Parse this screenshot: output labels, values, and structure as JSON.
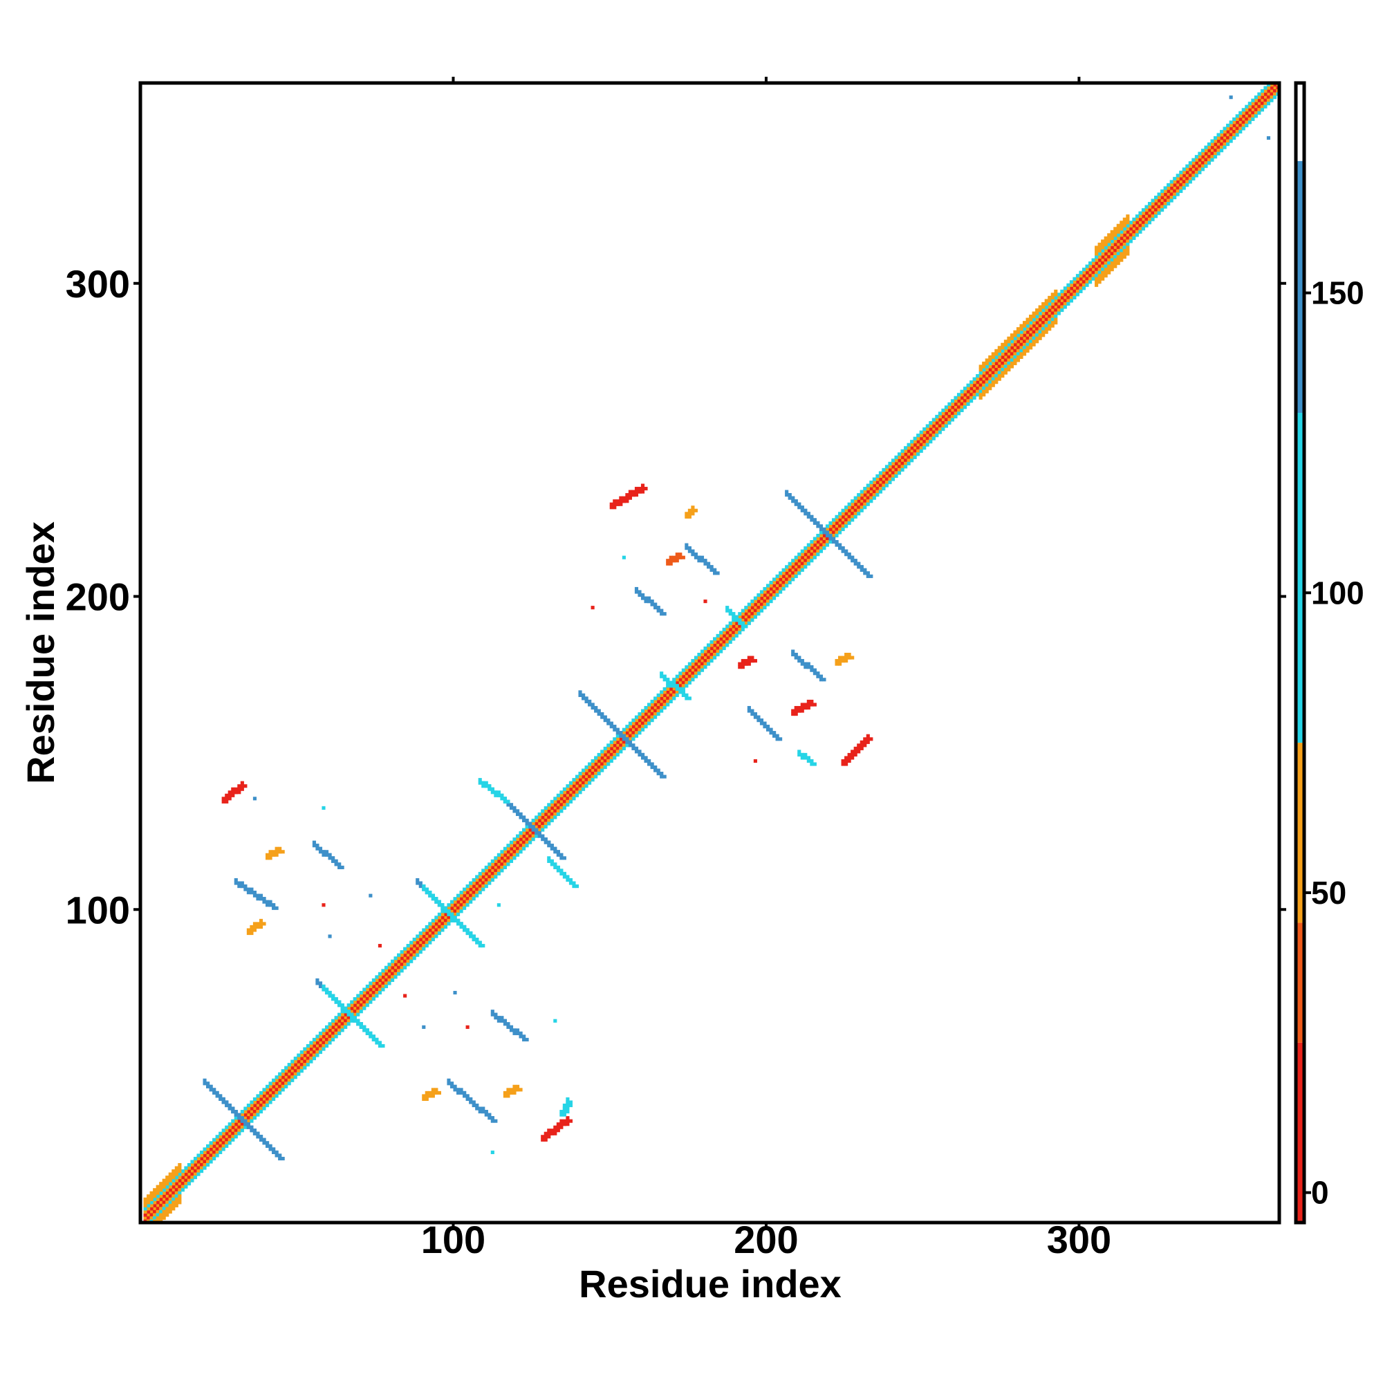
{
  "chart_data": {
    "type": "heatmap",
    "title": "",
    "xlabel": "Residue index",
    "ylabel": "Residue index",
    "xlim": [
      0,
      364
    ],
    "ylim": [
      0,
      364
    ],
    "xticks": [
      {
        "value": 100,
        "label": "100"
      },
      {
        "value": 200,
        "label": "200"
      },
      {
        "value": 300,
        "label": "300"
      }
    ],
    "yticks": [
      {
        "value": 100,
        "label": "100"
      },
      {
        "value": 200,
        "label": "200"
      },
      {
        "value": 300,
        "label": "300"
      }
    ],
    "grid": false,
    "colorbar": {
      "range": [
        -5,
        185
      ],
      "ticks": [
        {
          "value": 0,
          "label": "0"
        },
        {
          "value": 50,
          "label": "50"
        },
        {
          "value": 100,
          "label": "100"
        },
        {
          "value": 150,
          "label": "150"
        }
      ],
      "bands": [
        {
          "from": -5,
          "to": 25,
          "color": "#e8231b"
        },
        {
          "from": 25,
          "to": 45,
          "color": "#ee5a1a"
        },
        {
          "from": 45,
          "to": 75,
          "color": "#f5a01a"
        },
        {
          "from": 75,
          "to": 130,
          "color": "#26d4e6"
        },
        {
          "from": 130,
          "to": 172,
          "color": "#3e90c9"
        },
        {
          "from": 172,
          "to": 185,
          "color": "#ffffff"
        }
      ]
    },
    "colors": {
      "red": "#e8231b",
      "red_orange": "#ee5a1a",
      "orange": "#f5a01a",
      "cyan": "#26d4e6",
      "blue": "#3e90c9"
    },
    "diagonal_bands": [
      {
        "from": 1,
        "to": 364,
        "offset": 0,
        "width": 1,
        "color": "orange"
      },
      {
        "from": 1,
        "to": 364,
        "offset": 1,
        "width": 1,
        "color": "red"
      },
      {
        "from": 1,
        "to": 364,
        "offset": -1,
        "width": 1,
        "color": "red"
      },
      {
        "from": 1,
        "to": 364,
        "offset": 2,
        "width": 1,
        "color": "orange"
      },
      {
        "from": 1,
        "to": 364,
        "offset": -2,
        "width": 1,
        "color": "orange"
      },
      {
        "from": 1,
        "to": 364,
        "offset": 3,
        "width": 1,
        "color": "cyan"
      },
      {
        "from": 1,
        "to": 364,
        "offset": -3,
        "width": 1,
        "color": "cyan"
      },
      {
        "from": 268,
        "to": 292,
        "offset": 4,
        "width": 2,
        "color": "orange"
      },
      {
        "from": 268,
        "to": 292,
        "offset": -4,
        "width": 2,
        "color": "orange"
      },
      {
        "from": 305,
        "to": 315,
        "offset": 4,
        "width": 3,
        "color": "orange"
      },
      {
        "from": 305,
        "to": 315,
        "offset": -4,
        "width": 3,
        "color": "orange"
      },
      {
        "from": 1,
        "to": 12,
        "offset": 4,
        "width": 3,
        "color": "orange"
      },
      {
        "from": 1,
        "to": 12,
        "offset": -4,
        "width": 3,
        "color": "orange"
      }
    ],
    "segments": [
      {
        "x": [
          20,
          38
        ],
        "y": [
          44,
          26
        ],
        "color": "blue"
      },
      {
        "x": [
          26,
          44
        ],
        "y": [
          38,
          20
        ],
        "color": "blue"
      },
      {
        "x": [
          56,
          74
        ],
        "y": [
          76,
          58
        ],
        "color": "blue"
      },
      {
        "x": [
          58,
          76
        ],
        "y": [
          74,
          56
        ],
        "color": "cyan"
      },
      {
        "x": [
          88,
          106
        ],
        "y": [
          108,
          90
        ],
        "color": "blue"
      },
      {
        "x": [
          90,
          108
        ],
        "y": [
          106,
          88
        ],
        "color": "cyan"
      },
      {
        "x": [
          116,
          134
        ],
        "y": [
          134,
          116
        ],
        "color": "blue"
      },
      {
        "x": [
          108,
          116
        ],
        "y": [
          140,
          134
        ],
        "color": "cyan"
      },
      {
        "x": [
          130,
          138
        ],
        "y": [
          115,
          107
        ],
        "color": "cyan"
      },
      {
        "x": [
          140,
          166
        ],
        "y": [
          168,
          142
        ],
        "color": "blue"
      },
      {
        "x": [
          206,
          232
        ],
        "y": [
          232,
          206
        ],
        "color": "blue"
      },
      {
        "x": [
          30,
          42
        ],
        "y": [
          108,
          100
        ],
        "color": "blue"
      },
      {
        "x": [
          55,
          63
        ],
        "y": [
          120,
          113
        ],
        "color": "blue"
      },
      {
        "x": [
          98,
          112
        ],
        "y": [
          44,
          32
        ],
        "color": "blue"
      },
      {
        "x": [
          112,
          122
        ],
        "y": [
          66,
          58
        ],
        "color": "blue"
      },
      {
        "x": [
          158,
          166
        ],
        "y": [
          201,
          194
        ],
        "color": "blue"
      },
      {
        "x": [
          174,
          183
        ],
        "y": [
          215,
          207
        ],
        "color": "blue"
      },
      {
        "x": [
          194,
          203
        ],
        "y": [
          163,
          154
        ],
        "color": "blue"
      },
      {
        "x": [
          208,
          217
        ],
        "y": [
          181,
          173
        ],
        "color": "blue"
      },
      {
        "x": [
          166,
          174
        ],
        "y": [
          174,
          167
        ],
        "color": "cyan"
      },
      {
        "x": [
          187,
          192
        ],
        "y": [
          195,
          190
        ],
        "color": "cyan"
      },
      {
        "x": [
          210,
          214
        ],
        "y": [
          149,
          146
        ],
        "color": "cyan"
      },
      {
        "x": [
          26,
          32
        ],
        "y": [
          134,
          139
        ],
        "color": "red"
      },
      {
        "x": [
          128,
          136
        ],
        "y": [
          26,
          32
        ],
        "color": "red"
      },
      {
        "x": [
          150,
          160
        ],
        "y": [
          228,
          234
        ],
        "color": "red"
      },
      {
        "x": [
          224,
          232
        ],
        "y": [
          146,
          154
        ],
        "color": "red"
      },
      {
        "x": [
          168,
          172
        ],
        "y": [
          210,
          212
        ],
        "color": "red_orange"
      },
      {
        "x": [
          174,
          176
        ],
        "y": [
          225,
          227
        ],
        "color": "orange"
      },
      {
        "x": [
          208,
          214
        ],
        "y": [
          162,
          165
        ],
        "color": "red"
      },
      {
        "x": [
          222,
          226
        ],
        "y": [
          178,
          180
        ],
        "color": "orange"
      },
      {
        "x": [
          34,
          38
        ],
        "y": [
          92,
          95
        ],
        "color": "orange"
      },
      {
        "x": [
          40,
          44
        ],
        "y": [
          116,
          118
        ],
        "color": "orange"
      },
      {
        "x": [
          90,
          94
        ],
        "y": [
          39,
          41
        ],
        "color": "orange"
      },
      {
        "x": [
          116,
          120
        ],
        "y": [
          40,
          42
        ],
        "color": "orange"
      },
      {
        "x": [
          134,
          136
        ],
        "y": [
          34,
          38
        ],
        "color": "cyan"
      },
      {
        "x": [
          191,
          195
        ],
        "y": [
          177,
          179
        ],
        "color": "red"
      }
    ],
    "dots": [
      {
        "x": 348,
        "y": 359,
        "color": "blue"
      },
      {
        "x": 360,
        "y": 346,
        "color": "blue"
      },
      {
        "x": 58,
        "y": 132,
        "color": "cyan"
      },
      {
        "x": 36,
        "y": 135,
        "color": "blue"
      },
      {
        "x": 58,
        "y": 101,
        "color": "red"
      },
      {
        "x": 60,
        "y": 91,
        "color": "blue"
      },
      {
        "x": 73,
        "y": 104,
        "color": "blue"
      },
      {
        "x": 104,
        "y": 62,
        "color": "red"
      },
      {
        "x": 90,
        "y": 62,
        "color": "blue"
      },
      {
        "x": 132,
        "y": 64,
        "color": "cyan"
      },
      {
        "x": 144,
        "y": 196,
        "color": "red"
      },
      {
        "x": 196,
        "y": 147,
        "color": "red"
      },
      {
        "x": 154,
        "y": 212,
        "color": "cyan"
      },
      {
        "x": 180,
        "y": 198,
        "color": "red"
      },
      {
        "x": 76,
        "y": 88,
        "color": "red"
      },
      {
        "x": 100,
        "y": 73,
        "color": "blue"
      },
      {
        "x": 114,
        "y": 101,
        "color": "cyan"
      },
      {
        "x": 112,
        "y": 22,
        "color": "cyan"
      },
      {
        "x": 84,
        "y": 72,
        "color": "red"
      }
    ]
  }
}
